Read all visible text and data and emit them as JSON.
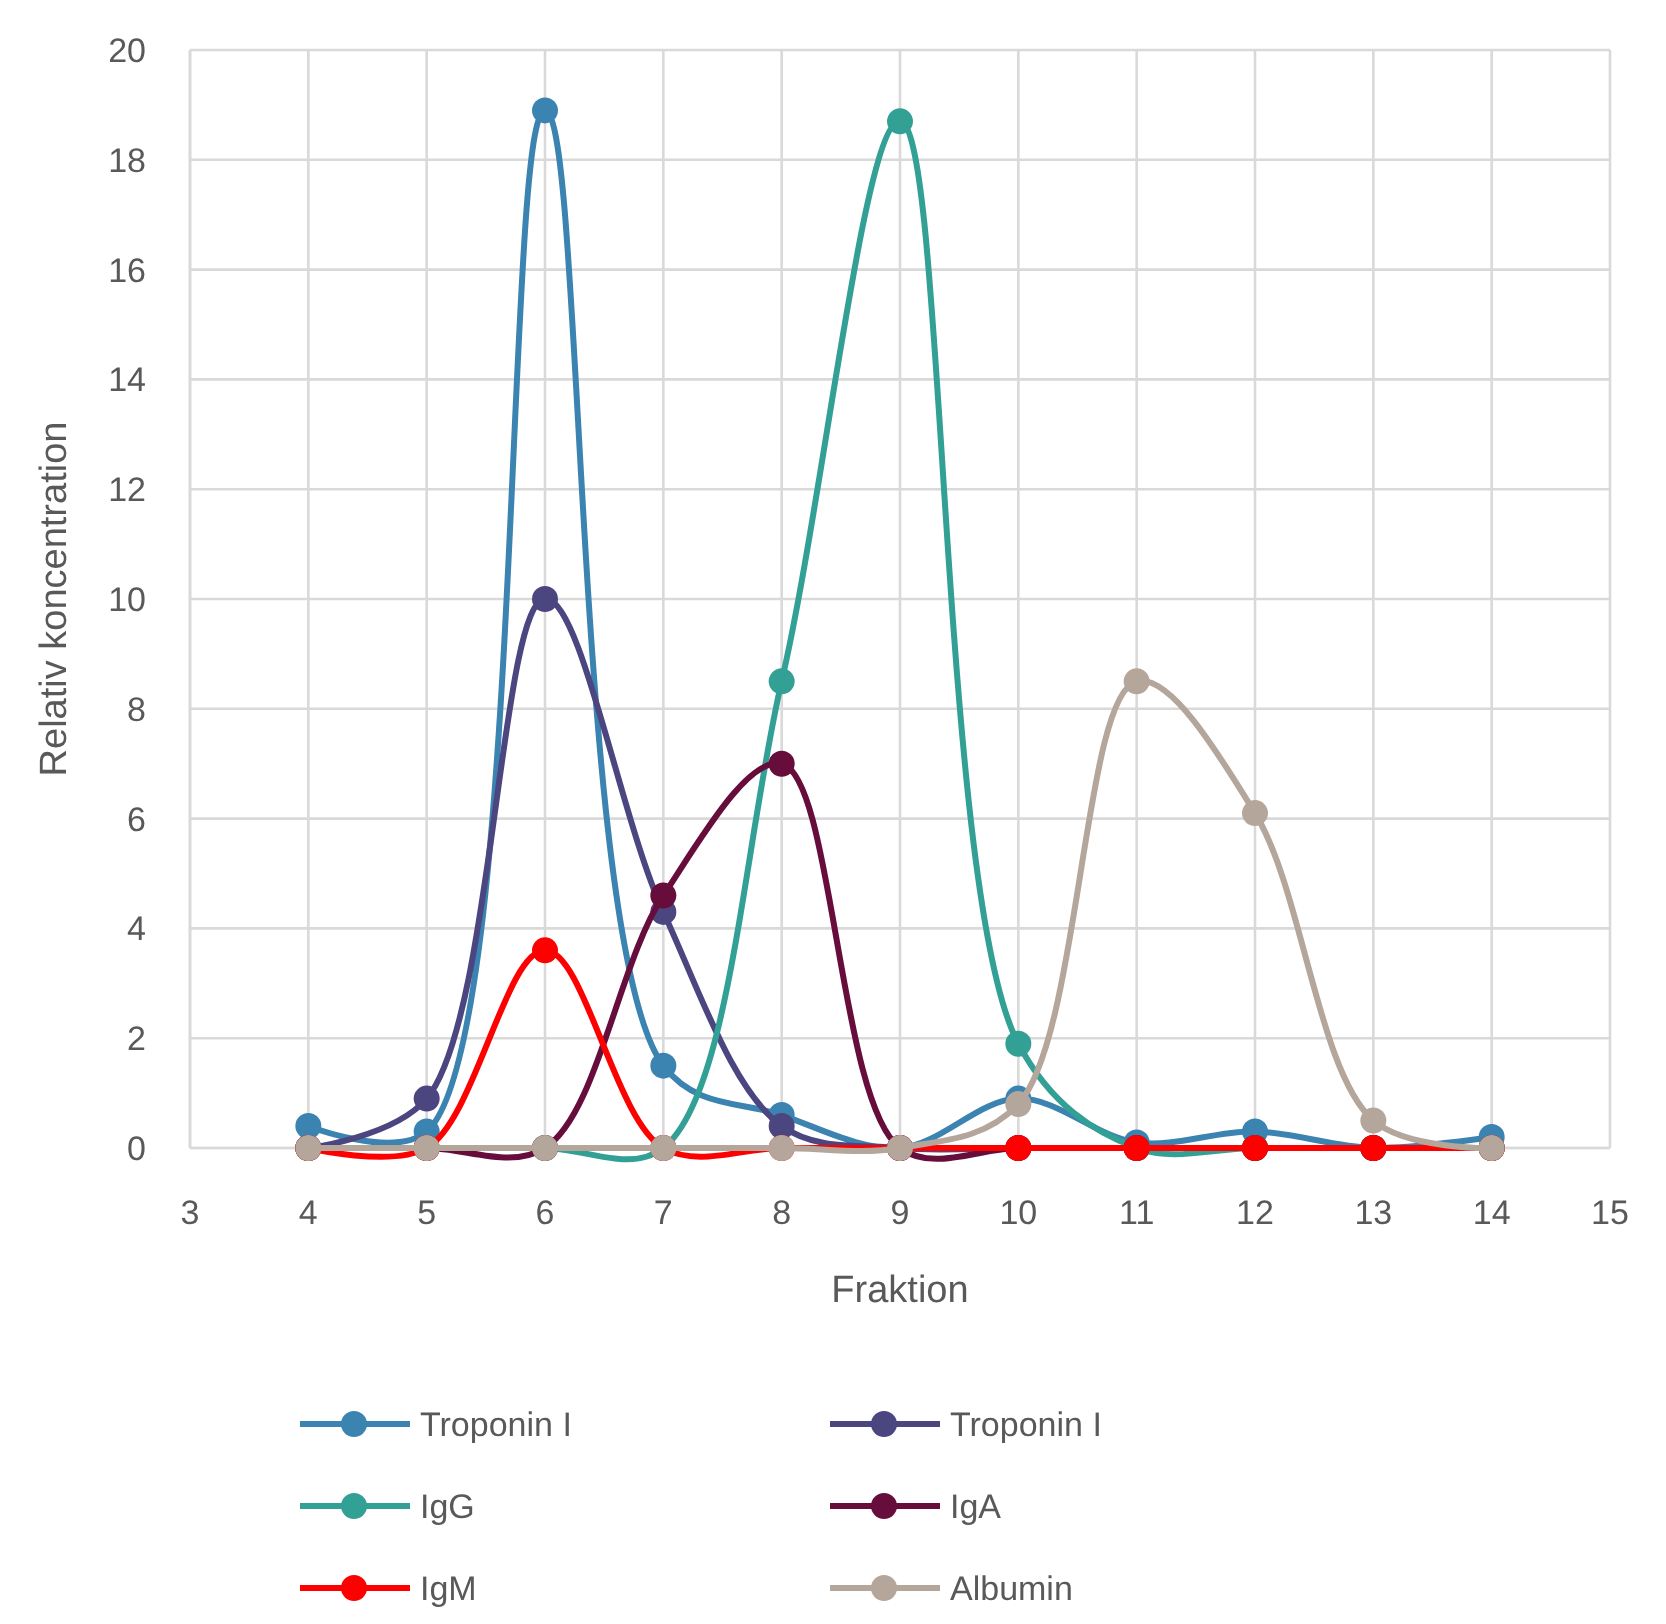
{
  "chart_data": {
    "type": "line",
    "xlabel": "Fraktion",
    "ylabel": "Relativ koncentration",
    "x": [
      4,
      5,
      6,
      7,
      8,
      9,
      10,
      11,
      12,
      13,
      14
    ],
    "xlim": [
      3,
      15
    ],
    "xticks": [
      3,
      4,
      5,
      6,
      7,
      8,
      9,
      10,
      11,
      12,
      13,
      14,
      15
    ],
    "ylim": [
      0,
      20
    ],
    "yticks": [
      0,
      2,
      4,
      6,
      8,
      10,
      12,
      14,
      16,
      18,
      20
    ],
    "grid": true,
    "legend": "bottom",
    "marker": "circle",
    "line_style": "solid",
    "series": [
      {
        "name": "Troponin I",
        "color": "#3b83b0",
        "values": [
          0.4,
          0.3,
          18.9,
          1.5,
          0.6,
          0,
          0.9,
          0.1,
          0.3,
          0,
          0.2
        ]
      },
      {
        "name": "Troponin I",
        "color": "#4b4680",
        "values": [
          0,
          0.9,
          10,
          4.3,
          0.4,
          0,
          0,
          0,
          0,
          0,
          0
        ]
      },
      {
        "name": "IgG",
        "color": "#33a095",
        "values": [
          0,
          0,
          0,
          0,
          8.5,
          18.7,
          1.9,
          0,
          0,
          0,
          0
        ]
      },
      {
        "name": "IgA",
        "color": "#670d3c",
        "values": [
          0,
          0,
          0,
          4.6,
          7,
          0,
          0,
          0,
          0,
          0,
          0
        ]
      },
      {
        "name": "IgM",
        "color": "#ff0000",
        "values": [
          0,
          0,
          3.6,
          0,
          0,
          0,
          0,
          0,
          0,
          0,
          0
        ]
      },
      {
        "name": "Albumin",
        "color": "#b5a69b",
        "values": [
          0,
          0,
          0,
          0,
          0,
          0,
          0.8,
          8.5,
          6.1,
          0.5,
          0
        ]
      }
    ]
  }
}
